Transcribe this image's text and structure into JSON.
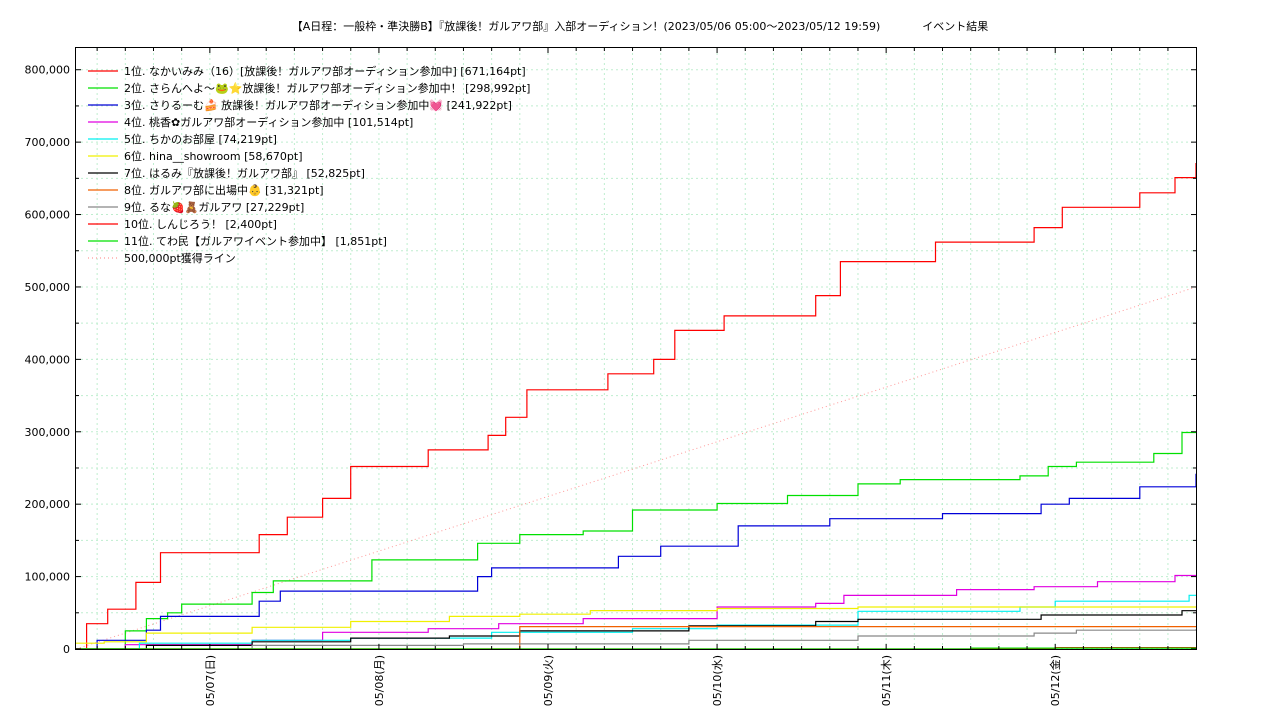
{
  "chart_data": {
    "type": "line",
    "title": "【A日程：一般枠・準決勝B】『放課後！ガルアワ部』入部オーディション！(2023/05/06 05:00～2023/05/12 19:59)            イベント結果",
    "xlabel": "",
    "ylabel": "",
    "x_range": [
      "2023-05-06 05:00",
      "2023-05-12 19:59"
    ],
    "ylim": [
      0,
      830000
    ],
    "y_ticks": [
      0,
      100000,
      200000,
      300000,
      400000,
      500000,
      600000,
      700000,
      800000
    ],
    "y_tick_labels": [
      "0",
      "100,000",
      "200,000",
      "300,000",
      "400,000",
      "500,000",
      "600,000",
      "700,000",
      "800,000"
    ],
    "x_ticks": [
      "2023-05-07 00:00",
      "2023-05-08 00:00",
      "2023-05-09 00:00",
      "2023-05-10 00:00",
      "2023-05-11 00:00",
      "2023-05-12 00:00"
    ],
    "x_tick_labels": [
      "05/07(日)",
      "05/08(月)",
      "05/09(火)",
      "05/10(水)",
      "05/11(木)",
      "05/12(金)"
    ],
    "grid": true,
    "legend_position": "top-left",
    "series": [
      {
        "name": "1位. なかいみみ（16）[放課後！ガルアワ部オーディション参加中] [671,164pt]",
        "color": "#ff0000",
        "dash": false,
        "points": [
          [
            "2023-05-06 05:00",
            0
          ],
          [
            "2023-05-06 06:30",
            35000
          ],
          [
            "2023-05-06 09:30",
            55000
          ],
          [
            "2023-05-06 13:30",
            92000
          ],
          [
            "2023-05-06 17:00",
            133000
          ],
          [
            "2023-05-07 07:00",
            158000
          ],
          [
            "2023-05-07 11:00",
            182000
          ],
          [
            "2023-05-07 16:00",
            208000
          ],
          [
            "2023-05-07 20:00",
            252000
          ],
          [
            "2023-05-08 07:00",
            275000
          ],
          [
            "2023-05-08 15:30",
            295000
          ],
          [
            "2023-05-08 18:00",
            320000
          ],
          [
            "2023-05-08 21:00",
            358000
          ],
          [
            "2023-05-09 08:30",
            380000
          ],
          [
            "2023-05-09 15:00",
            400000
          ],
          [
            "2023-05-09 18:00",
            440000
          ],
          [
            "2023-05-10 01:00",
            460000
          ],
          [
            "2023-05-10 14:00",
            488000
          ],
          [
            "2023-05-10 17:30",
            535000
          ],
          [
            "2023-05-11 07:00",
            562000
          ],
          [
            "2023-05-11 21:00",
            582000
          ],
          [
            "2023-05-12 01:00",
            610000
          ],
          [
            "2023-05-12 12:00",
            630000
          ],
          [
            "2023-05-12 17:00",
            651000
          ],
          [
            "2023-05-12 19:59",
            671164
          ]
        ]
      },
      {
        "name": "2位. さらんへよ〜🐸⭐放課後！ガルアワ部オーディション参加中！ [298,992pt]",
        "color": "#00e000",
        "dash": false,
        "points": [
          [
            "2023-05-06 05:00",
            0
          ],
          [
            "2023-05-06 12:00",
            25000
          ],
          [
            "2023-05-06 15:00",
            42000
          ],
          [
            "2023-05-06 18:00",
            50000
          ],
          [
            "2023-05-06 20:00",
            62000
          ],
          [
            "2023-05-07 06:00",
            78000
          ],
          [
            "2023-05-07 09:00",
            94000
          ],
          [
            "2023-05-07 23:00",
            123000
          ],
          [
            "2023-05-08 14:00",
            146000
          ],
          [
            "2023-05-08 20:00",
            158000
          ],
          [
            "2023-05-09 05:00",
            163000
          ],
          [
            "2023-05-09 12:00",
            192000
          ],
          [
            "2023-05-10 00:00",
            201000
          ],
          [
            "2023-05-10 10:00",
            212000
          ],
          [
            "2023-05-10 20:00",
            228000
          ],
          [
            "2023-05-11 02:00",
            234000
          ],
          [
            "2023-05-11 19:00",
            239000
          ],
          [
            "2023-05-11 23:00",
            252000
          ],
          [
            "2023-05-12 03:00",
            258000
          ],
          [
            "2023-05-12 14:00",
            270000
          ],
          [
            "2023-05-12 18:00",
            298992
          ]
        ]
      },
      {
        "name": "3位. さりるーむ🍰 放課後！ガルアワ部オーディション参加中💓 [241,922pt]",
        "color": "#0000d8",
        "dash": false,
        "points": [
          [
            "2023-05-06 05:00",
            0
          ],
          [
            "2023-05-06 08:00",
            12000
          ],
          [
            "2023-05-06 15:00",
            26000
          ],
          [
            "2023-05-06 17:00",
            45000
          ],
          [
            "2023-05-07 07:00",
            66000
          ],
          [
            "2023-05-07 10:00",
            80000
          ],
          [
            "2023-05-08 07:00",
            80000
          ],
          [
            "2023-05-08 14:00",
            100000
          ],
          [
            "2023-05-08 16:00",
            112000
          ],
          [
            "2023-05-09 10:00",
            128000
          ],
          [
            "2023-05-09 16:00",
            142000
          ],
          [
            "2023-05-10 03:00",
            170000
          ],
          [
            "2023-05-10 16:00",
            180000
          ],
          [
            "2023-05-11 08:00",
            187000
          ],
          [
            "2023-05-11 22:00",
            200000
          ],
          [
            "2023-05-12 02:00",
            208000
          ],
          [
            "2023-05-12 12:00",
            224000
          ],
          [
            "2023-05-12 19:59",
            241922
          ]
        ]
      },
      {
        "name": "4位. 桃香✿ガルアワ部オーディション参加中 [101,514pt]",
        "color": "#e000e0",
        "dash": false,
        "points": [
          [
            "2023-05-06 05:00",
            0
          ],
          [
            "2023-05-06 12:00",
            6000
          ],
          [
            "2023-05-07 06:00",
            12000
          ],
          [
            "2023-05-07 16:00",
            23000
          ],
          [
            "2023-05-08 07:00",
            28000
          ],
          [
            "2023-05-08 17:00",
            35000
          ],
          [
            "2023-05-09 05:00",
            42000
          ],
          [
            "2023-05-10 00:00",
            58000
          ],
          [
            "2023-05-10 14:00",
            63000
          ],
          [
            "2023-05-10 18:00",
            74000
          ],
          [
            "2023-05-11 10:00",
            82000
          ],
          [
            "2023-05-11 21:00",
            86000
          ],
          [
            "2023-05-12 06:00",
            93000
          ],
          [
            "2023-05-12 17:00",
            101514
          ]
        ]
      },
      {
        "name": "5位. ちかのお部屋 [74,219pt]",
        "color": "#00f0f0",
        "dash": false,
        "points": [
          [
            "2023-05-06 05:00",
            0
          ],
          [
            "2023-05-06 14:00",
            8000
          ],
          [
            "2023-05-07 06:00",
            12000
          ],
          [
            "2023-05-07 20:00",
            15000
          ],
          [
            "2023-05-08 16:00",
            23000
          ],
          [
            "2023-05-09 12:00",
            28000
          ],
          [
            "2023-05-10 00:00",
            33000
          ],
          [
            "2023-05-10 20:00",
            52000
          ],
          [
            "2023-05-11 19:00",
            58000
          ],
          [
            "2023-05-12 00:00",
            66000
          ],
          [
            "2023-05-12 19:00",
            74219
          ]
        ]
      },
      {
        "name": "6位. hina__showroom [58,670pt]",
        "color": "#f0f000",
        "dash": false,
        "points": [
          [
            "2023-05-06 05:00",
            8000
          ],
          [
            "2023-05-06 09:00",
            10000
          ],
          [
            "2023-05-06 15:00",
            22000
          ],
          [
            "2023-05-07 06:00",
            30000
          ],
          [
            "2023-05-07 20:00",
            38000
          ],
          [
            "2023-05-08 10:00",
            45000
          ],
          [
            "2023-05-08 20:00",
            48000
          ],
          [
            "2023-05-09 06:00",
            53000
          ],
          [
            "2023-05-10 00:00",
            56000
          ],
          [
            "2023-05-10 20:00",
            58000
          ],
          [
            "2023-05-12 19:59",
            58670
          ]
        ]
      },
      {
        "name": "7位. はるみ『放課後！ガルアワ部』 [52,825pt]",
        "color": "#000000",
        "dash": false,
        "points": [
          [
            "2023-05-06 05:00",
            0
          ],
          [
            "2023-05-06 15:00",
            5000
          ],
          [
            "2023-05-07 06:00",
            10000
          ],
          [
            "2023-05-07 20:00",
            15000
          ],
          [
            "2023-05-08 10:00",
            18000
          ],
          [
            "2023-05-08 20:00",
            25000
          ],
          [
            "2023-05-09 20:00",
            32000
          ],
          [
            "2023-05-10 14:00",
            38000
          ],
          [
            "2023-05-10 20:00",
            41000
          ],
          [
            "2023-05-11 22:00",
            47000
          ],
          [
            "2023-05-12 18:00",
            52825
          ]
        ]
      },
      {
        "name": "8位. ガルアワ部に出場中👶 [31,321pt]",
        "color": "#f06000",
        "dash": false,
        "points": [
          [
            "2023-05-06 05:00",
            0
          ],
          [
            "2023-05-08 19:00",
            0
          ],
          [
            "2023-05-08 20:00",
            31000
          ],
          [
            "2023-05-12 19:59",
            31321
          ]
        ]
      },
      {
        "name": "9位. るな🍓🧸ガルアワ [27,229pt]",
        "color": "#888888",
        "dash": false,
        "points": [
          [
            "2023-05-06 05:00",
            0
          ],
          [
            "2023-05-07 06:00",
            5000
          ],
          [
            "2023-05-08 12:00",
            7000
          ],
          [
            "2023-05-09 20:00",
            12000
          ],
          [
            "2023-05-10 20:00",
            18000
          ],
          [
            "2023-05-11 21:00",
            22000
          ],
          [
            "2023-05-12 03:00",
            26000
          ],
          [
            "2023-05-12 19:59",
            27229
          ]
        ]
      },
      {
        "name": "10位. しんじろう！ [2,400pt]",
        "color": "#ff0000",
        "dash": false,
        "points": [
          [
            "2023-05-06 05:00",
            0
          ],
          [
            "2023-05-12 00:00",
            2000
          ],
          [
            "2023-05-12 19:59",
            2400
          ]
        ]
      },
      {
        "name": "11位. てわ民【ガルアワイベント参加中】 [1,851pt]",
        "color": "#00e000",
        "dash": false,
        "points": [
          [
            "2023-05-06 05:00",
            0
          ],
          [
            "2023-05-11 12:00",
            1200
          ],
          [
            "2023-05-12 19:59",
            1851
          ]
        ]
      },
      {
        "name": "500,000pt獲得ライン",
        "color": "#ff9999",
        "dash": true,
        "points": [
          [
            "2023-05-06 05:00",
            0
          ],
          [
            "2023-05-12 19:59",
            500000
          ]
        ]
      }
    ]
  }
}
